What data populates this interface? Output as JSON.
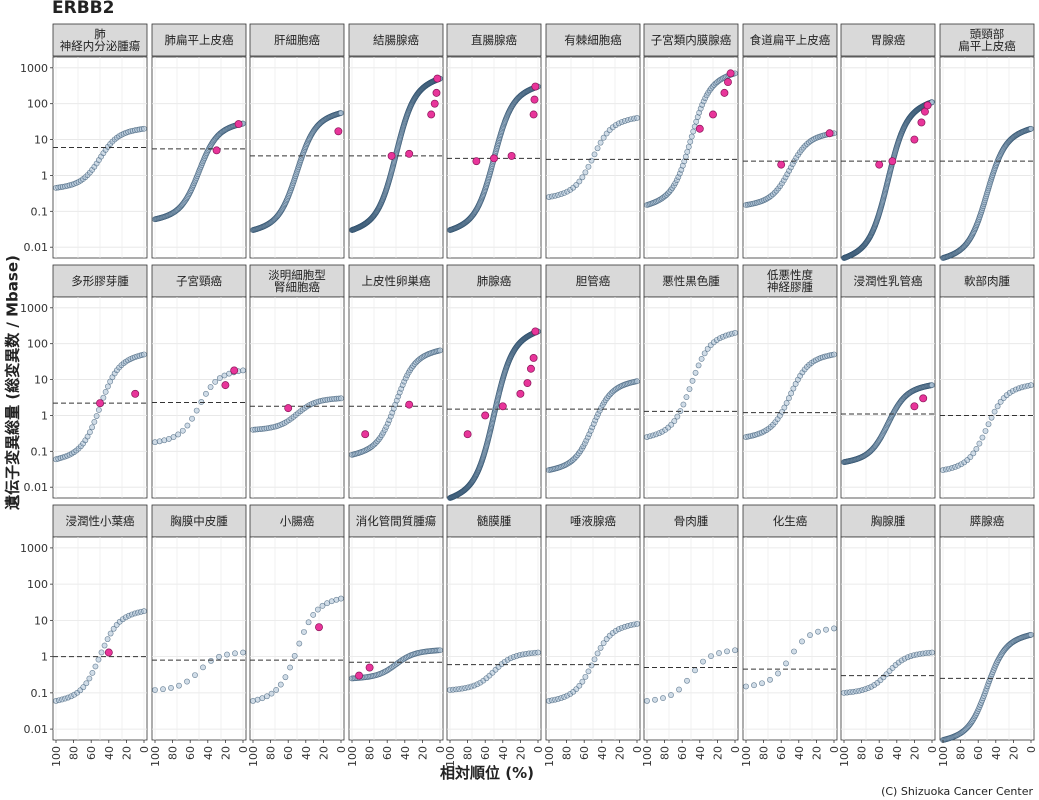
{
  "title": "ERBB2",
  "xlabel": "相対順位 (%)",
  "ylabel": "遺伝子変異総量 (総変異数 / Mbase)",
  "credit": "(C) Shizuoka Cancer Center",
  "colors": {
    "other": "#2e4e6b",
    "other_fill": "#a9bfd3",
    "mutated": "#e8359a",
    "median_line": "#333333",
    "strip_bg": "#d9d9d9"
  },
  "chart_data": {
    "type": "scatter",
    "gene": "ERBB2",
    "y_scale": "log10",
    "ylim": [
      0.005,
      2000
    ],
    "y_ticks": [
      "0.01",
      "0.1",
      "1",
      "10",
      "100",
      "1000"
    ],
    "x_reversed": true,
    "xlim": [
      100,
      0
    ],
    "x_ticks": [
      "100",
      "80",
      "60",
      "40",
      "20",
      "0"
    ],
    "grid": true,
    "panels": [
      {
        "label": "肺\n神経内分泌腫瘍",
        "n": 40,
        "lo": 0.45,
        "hi": 20,
        "median": 6,
        "mut": []
      },
      {
        "label": "肺扁平上皮癌",
        "n": 120,
        "lo": 0.06,
        "hi": 28,
        "median": 5.5,
        "mut": [
          [
            30,
            5
          ],
          [
            5,
            27
          ]
        ]
      },
      {
        "label": "肝細胞癌",
        "n": 150,
        "lo": 0.03,
        "hi": 55,
        "median": 3.5,
        "mut": [
          [
            3,
            17
          ]
        ]
      },
      {
        "label": "結腸腺癌",
        "n": 300,
        "lo": 0.03,
        "hi": 500,
        "median": 3.5,
        "mut": [
          [
            55,
            3.5
          ],
          [
            35,
            4
          ],
          [
            10,
            50
          ],
          [
            6,
            100
          ],
          [
            4,
            200
          ],
          [
            3,
            500
          ]
        ]
      },
      {
        "label": "直腸腺癌",
        "n": 200,
        "lo": 0.03,
        "hi": 300,
        "median": 3,
        "mut": [
          [
            70,
            2.5
          ],
          [
            50,
            3
          ],
          [
            30,
            3.5
          ],
          [
            5,
            50
          ],
          [
            4,
            130
          ],
          [
            3,
            300
          ]
        ]
      },
      {
        "label": "有棘細胞癌",
        "n": 30,
        "lo": 0.25,
        "hi": 40,
        "median": 2.8,
        "mut": []
      },
      {
        "label": "子宮類内膜腺癌",
        "n": 60,
        "lo": 0.15,
        "hi": 700,
        "median": 2.8,
        "mut": [
          [
            40,
            20
          ],
          [
            25,
            50
          ],
          [
            12,
            200
          ],
          [
            8,
            400
          ],
          [
            5,
            700
          ]
        ]
      },
      {
        "label": "食道扁平上皮癌",
        "n": 50,
        "lo": 0.15,
        "hi": 15,
        "median": 2.5,
        "mut": [
          [
            60,
            2
          ],
          [
            5,
            15
          ]
        ]
      },
      {
        "label": "胃腺癌",
        "n": 300,
        "lo": 0.005,
        "hi": 110,
        "median": 2.5,
        "mut": [
          [
            60,
            2
          ],
          [
            45,
            2.5
          ],
          [
            20,
            10
          ],
          [
            12,
            30
          ],
          [
            8,
            60
          ],
          [
            5,
            90
          ]
        ]
      },
      {
        "label": "頭頸部\n扁平上皮癌",
        "n": 150,
        "lo": 0.005,
        "hi": 20,
        "median": 2.5,
        "mut": []
      },
      {
        "label": "多形膠芽腫",
        "n": 40,
        "lo": 0.06,
        "hi": 50,
        "median": 2.2,
        "mut": [
          [
            50,
            2.2
          ],
          [
            10,
            4
          ]
        ]
      },
      {
        "label": "子宮頸癌",
        "n": 20,
        "lo": 0.18,
        "hi": 18,
        "median": 2.3,
        "mut": [
          [
            20,
            7
          ],
          [
            10,
            18
          ]
        ]
      },
      {
        "label": "淡明細胞型\n腎細胞癌",
        "n": 40,
        "lo": 0.4,
        "hi": 3,
        "median": 1.8,
        "mut": [
          [
            60,
            1.6
          ]
        ]
      },
      {
        "label": "上皮性卵巣癌",
        "n": 60,
        "lo": 0.08,
        "hi": 65,
        "median": 1.8,
        "mut": [
          [
            85,
            0.3
          ],
          [
            35,
            2
          ]
        ]
      },
      {
        "label": "肺腺癌",
        "n": 300,
        "lo": 0.005,
        "hi": 220,
        "median": 1.5,
        "mut": [
          [
            80,
            0.3
          ],
          [
            60,
            1
          ],
          [
            40,
            1.8
          ],
          [
            20,
            4
          ],
          [
            12,
            8
          ],
          [
            8,
            20
          ],
          [
            5,
            40
          ],
          [
            3,
            220
          ]
        ]
      },
      {
        "label": "胆管癌",
        "n": 60,
        "lo": 0.03,
        "hi": 9,
        "median": 1.5,
        "mut": []
      },
      {
        "label": "悪性黒色腫",
        "n": 30,
        "lo": 0.25,
        "hi": 200,
        "median": 1.3,
        "mut": []
      },
      {
        "label": "低悪性度\n神経膠腫",
        "n": 40,
        "lo": 0.25,
        "hi": 50,
        "median": 1.2,
        "mut": []
      },
      {
        "label": "浸潤性乳管癌",
        "n": 150,
        "lo": 0.05,
        "hi": 7,
        "median": 1.1,
        "mut": [
          [
            20,
            1.8
          ],
          [
            10,
            3
          ]
        ]
      },
      {
        "label": "軟部肉腫",
        "n": 30,
        "lo": 0.03,
        "hi": 7,
        "median": 1.0,
        "mut": []
      },
      {
        "label": "浸潤性小葉癌",
        "n": 30,
        "lo": 0.06,
        "hi": 18,
        "median": 1.0,
        "mut": [
          [
            40,
            1.3
          ]
        ]
      },
      {
        "label": "胸膜中皮腫",
        "n": 12,
        "lo": 0.12,
        "hi": 1.3,
        "median": 0.8,
        "mut": []
      },
      {
        "label": "小腸癌",
        "n": 20,
        "lo": 0.06,
        "hi": 40,
        "median": 0.8,
        "mut": [
          [
            25,
            6.5
          ]
        ]
      },
      {
        "label": "消化管間質腫瘍",
        "n": 60,
        "lo": 0.25,
        "hi": 1.5,
        "median": 0.7,
        "mut": [
          [
            92,
            0.3
          ],
          [
            80,
            0.5
          ]
        ]
      },
      {
        "label": "髄膜腫",
        "n": 30,
        "lo": 0.12,
        "hi": 1.3,
        "median": 0.6,
        "mut": []
      },
      {
        "label": "唾液腺癌",
        "n": 30,
        "lo": 0.06,
        "hi": 8,
        "median": 0.6,
        "mut": []
      },
      {
        "label": "骨肉腫",
        "n": 12,
        "lo": 0.06,
        "hi": 1.5,
        "median": 0.5,
        "mut": []
      },
      {
        "label": "化生癌",
        "n": 12,
        "lo": 0.15,
        "hi": 6,
        "median": 0.45,
        "mut": []
      },
      {
        "label": "胸腺腫",
        "n": 30,
        "lo": 0.1,
        "hi": 1.3,
        "median": 0.3,
        "mut": []
      },
      {
        "label": "膵腺癌",
        "n": 100,
        "lo": 0.005,
        "hi": 4,
        "median": 0.25,
        "mut": []
      }
    ]
  }
}
